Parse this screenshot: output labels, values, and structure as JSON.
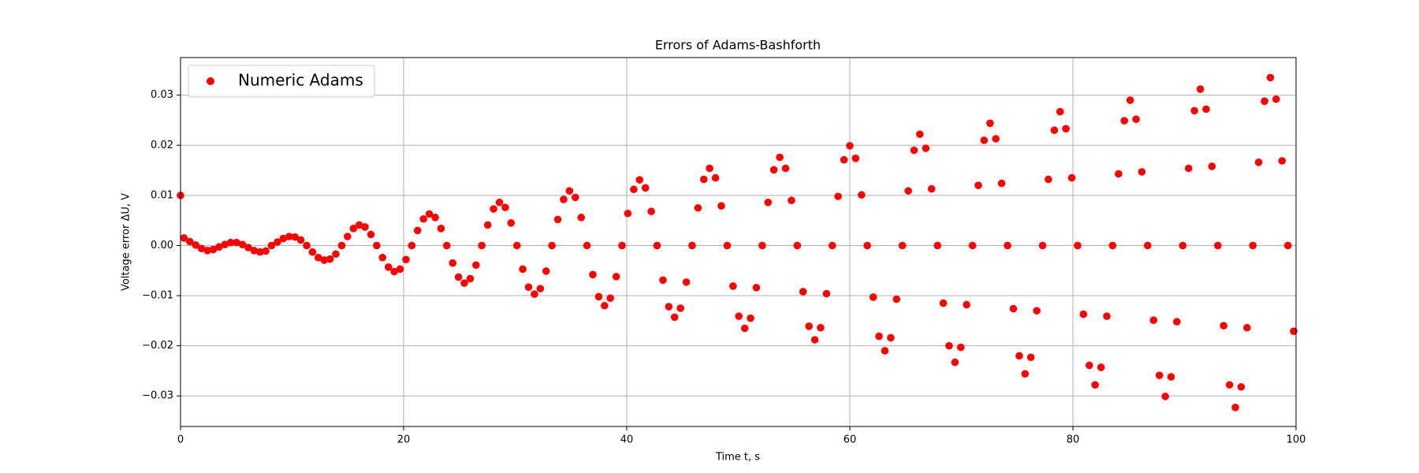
{
  "chart_data": {
    "type": "scatter",
    "title": "Errors of Adams-Bashforth",
    "xlabel": "Time t, s",
    "ylabel": "Voltage error ΔU, V",
    "xlim": [
      0,
      100
    ],
    "ylim": [
      -0.0361,
      0.0375
    ],
    "xticks": [
      0,
      20,
      40,
      60,
      80,
      100
    ],
    "yticks": [
      {
        "value": -0.03,
        "label": "−0.03"
      },
      {
        "value": -0.02,
        "label": "−0.02"
      },
      {
        "value": -0.01,
        "label": "−0.01"
      },
      {
        "value": 0,
        "label": "0.00"
      },
      0.01,
      0.02,
      0.03
    ],
    "grid": true,
    "legend": "upper left",
    "x": [
      0,
      0.31,
      0.83,
      1.36,
      1.88,
      2.41,
      2.93,
      3.45,
      3.98,
      4.5,
      5.02,
      5.55,
      6.07,
      6.59,
      7.12,
      7.64,
      8.16,
      8.69,
      9.21,
      9.74,
      10.26,
      10.78,
      11.31,
      11.83,
      12.35,
      12.88,
      13.4,
      13.92,
      14.45,
      14.97,
      15.5,
      16.02,
      16.54,
      17.07,
      17.59,
      18.11,
      18.64,
      19.16,
      19.68,
      20.21,
      20.73,
      21.25,
      21.78,
      22.3,
      22.83,
      23.35,
      23.87,
      24.4,
      24.92,
      25.44,
      25.97,
      26.49,
      27.01,
      27.54,
      28.06,
      28.59,
      29.11,
      29.63,
      30.16,
      30.68,
      31.2,
      31.73,
      32.25,
      32.77,
      33.3,
      33.82,
      34.34,
      34.87,
      35.39,
      35.92,
      36.44,
      36.96,
      37.49,
      38.01,
      38.53,
      39.06,
      39.58,
      40.1,
      40.63,
      41.15,
      41.68,
      42.2,
      42.72,
      43.25,
      43.77,
      44.29,
      44.82,
      45.34,
      45.86,
      46.39,
      46.91,
      47.43,
      47.96,
      48.48,
      49.01,
      49.53,
      50.05,
      50.58,
      51.1,
      51.62,
      52.15,
      52.67,
      53.19,
      53.72,
      54.24,
      54.77,
      55.29,
      55.81,
      56.34,
      56.86,
      57.38,
      57.91,
      58.43,
      58.95,
      59.48,
      60.0,
      60.52,
      61.05,
      61.57,
      62.1,
      62.62,
      63.14,
      63.67,
      64.19,
      64.71,
      65.24,
      65.76,
      66.28,
      66.81,
      67.33,
      67.86,
      68.38,
      68.9,
      69.43,
      69.95,
      70.47,
      71.0,
      71.52,
      72.04,
      72.57,
      73.09,
      73.61,
      74.14,
      74.66,
      75.19,
      75.71,
      76.23,
      76.76,
      77.28,
      77.8,
      78.33,
      78.85,
      79.37,
      79.9,
      80.42,
      80.94,
      81.47,
      81.99,
      82.52,
      83.04,
      83.56,
      84.09,
      84.61,
      85.13,
      85.66,
      86.18,
      86.7,
      87.23,
      87.75,
      88.28,
      88.8,
      89.32,
      89.85,
      90.37,
      90.89,
      91.42,
      91.94,
      92.46,
      92.99,
      93.51,
      94.04,
      94.56,
      95.08,
      95.61,
      96.13,
      96.65,
      97.18,
      97.7,
      98.22,
      98.75,
      99.27,
      99.79
    ],
    "series": [
      {
        "name": "Numeric Adams",
        "color": "#ff0000",
        "values": [
          0.01,
          0.0015,
          0.0008,
          0.0001,
          -0.0006,
          -0.001,
          -0.0008,
          -0.0003,
          0.0002,
          0.0006,
          0.0006,
          0.0002,
          -0.0004,
          -0.001,
          -0.0013,
          -0.0011,
          0,
          0.0007,
          0.0014,
          0.0018,
          0.0017,
          0.0011,
          0,
          -0.0013,
          -0.0024,
          -0.0029,
          -0.0027,
          -0.0017,
          0,
          0.0018,
          0.0034,
          0.0041,
          0.0037,
          0.0022,
          0,
          -0.0024,
          -0.0043,
          -0.0052,
          -0.0047,
          -0.0028,
          0,
          0.003,
          0.0053,
          0.0063,
          0.0056,
          0.0034,
          0,
          -0.0035,
          -0.0063,
          -0.0075,
          -0.0066,
          -0.0039,
          0,
          0.0041,
          0.0073,
          0.0086,
          0.0076,
          0.0045,
          0,
          -0.0047,
          -0.0083,
          -0.0097,
          -0.0086,
          -0.0051,
          0,
          0.0052,
          0.0092,
          0.0109,
          0.0096,
          0.0056,
          0,
          -0.0058,
          -0.0102,
          -0.012,
          -0.0105,
          -0.0062,
          0,
          0.0064,
          0.0112,
          0.0131,
          0.0115,
          0.0068,
          0,
          -0.0069,
          -0.0122,
          -0.0143,
          -0.0125,
          -0.0073,
          0,
          0.0075,
          0.0132,
          0.0154,
          0.0135,
          0.0079,
          0,
          -0.0081,
          -0.0141,
          -0.0165,
          -0.0145,
          -0.0084,
          0,
          0.0086,
          0.0151,
          0.0176,
          0.0154,
          0.009,
          0,
          -0.0092,
          -0.0161,
          -0.0188,
          -0.0164,
          -0.0096,
          0,
          0.0098,
          0.0171,
          0.0199,
          0.0174,
          0.0101,
          0,
          -0.0103,
          -0.0181,
          -0.021,
          -0.0184,
          -0.0107,
          0,
          0.0109,
          0.019,
          0.0222,
          0.0194,
          0.0113,
          0,
          -0.0115,
          -0.02,
          -0.0233,
          -0.0203,
          -0.0118,
          0,
          0.012,
          0.021,
          0.0244,
          0.0213,
          0.0124,
          0,
          -0.0126,
          -0.022,
          -0.0256,
          -0.0223,
          -0.013,
          0,
          0.0132,
          0.023,
          0.0267,
          0.0233,
          0.0135,
          0,
          -0.0137,
          -0.0239,
          -0.0278,
          -0.0243,
          -0.0141,
          0,
          0.0143,
          0.0249,
          0.029,
          0.0252,
          0.0147,
          0,
          -0.0149,
          -0.0259,
          -0.0301,
          -0.0262,
          -0.0152,
          0,
          0.0154,
          0.0269,
          0.0312,
          0.0272,
          0.0158,
          0,
          -0.016,
          -0.0278,
          -0.0323,
          -0.0282,
          -0.0164,
          0,
          0.0166,
          0.0288,
          0.0335,
          0.0292,
          0.0169,
          0,
          -0.0171
        ]
      }
    ]
  }
}
